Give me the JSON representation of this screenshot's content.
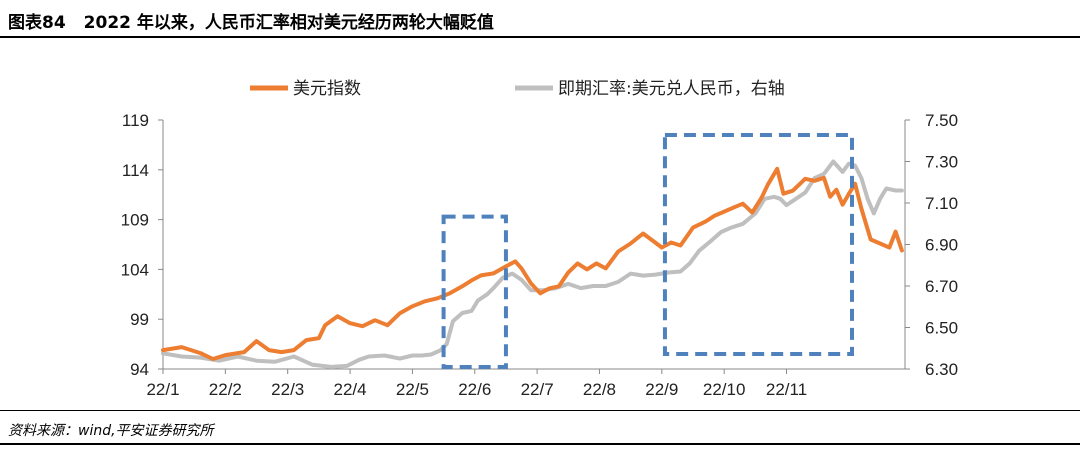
{
  "figure": {
    "label": "图表84",
    "title": "2022 年以来，人民币汇率相对美元经历两轮大幅贬值",
    "source": "资料来源：wind,平安证券研究所"
  },
  "chart_data": {
    "type": "line",
    "x_tick_labels": [
      "22/1",
      "22/2",
      "22/3",
      "22/4",
      "22/5",
      "22/6",
      "22/7",
      "22/8",
      "22/9",
      "22/10",
      "22/11"
    ],
    "y_left": {
      "ticks": [
        "94",
        "99",
        "104",
        "109",
        "114",
        "119"
      ],
      "range": [
        94,
        119
      ]
    },
    "y_right": {
      "ticks": [
        "6.30",
        "6.50",
        "6.70",
        "6.90",
        "7.10",
        "7.30",
        "7.50"
      ],
      "range": [
        6.3,
        7.5
      ]
    },
    "grid": false,
    "legend_position": "top-center",
    "series": [
      {
        "name": "美元指数",
        "axis": "left",
        "color": "#ED7D31",
        "points": [
          [
            0.0,
            95.9
          ],
          [
            0.3,
            96.2
          ],
          [
            0.6,
            95.6
          ],
          [
            0.8,
            95.0
          ],
          [
            1.0,
            95.4
          ],
          [
            1.3,
            95.7
          ],
          [
            1.5,
            96.8
          ],
          [
            1.7,
            95.9
          ],
          [
            1.9,
            95.7
          ],
          [
            2.1,
            95.9
          ],
          [
            2.3,
            96.9
          ],
          [
            2.5,
            97.1
          ],
          [
            2.6,
            98.4
          ],
          [
            2.8,
            99.3
          ],
          [
            3.0,
            98.6
          ],
          [
            3.2,
            98.3
          ],
          [
            3.4,
            98.9
          ],
          [
            3.6,
            98.4
          ],
          [
            3.8,
            99.6
          ],
          [
            4.0,
            100.3
          ],
          [
            4.2,
            100.8
          ],
          [
            4.4,
            101.1
          ],
          [
            4.6,
            101.6
          ],
          [
            4.8,
            102.3
          ],
          [
            4.95,
            102.9
          ],
          [
            5.1,
            103.4
          ],
          [
            5.3,
            103.6
          ],
          [
            5.5,
            104.3
          ],
          [
            5.65,
            104.8
          ],
          [
            5.75,
            104.1
          ],
          [
            5.9,
            102.6
          ],
          [
            6.05,
            101.6
          ],
          [
            6.2,
            102.1
          ],
          [
            6.35,
            102.3
          ],
          [
            6.5,
            103.7
          ],
          [
            6.65,
            104.6
          ],
          [
            6.8,
            104.0
          ],
          [
            6.95,
            104.6
          ],
          [
            7.1,
            104.1
          ],
          [
            7.3,
            105.8
          ],
          [
            7.5,
            106.6
          ],
          [
            7.7,
            107.6
          ],
          [
            7.85,
            106.9
          ],
          [
            8.0,
            106.2
          ],
          [
            8.15,
            106.7
          ],
          [
            8.3,
            106.4
          ],
          [
            8.5,
            108.2
          ],
          [
            8.7,
            108.8
          ],
          [
            8.85,
            109.4
          ],
          [
            9.0,
            109.8
          ],
          [
            9.15,
            110.2
          ],
          [
            9.3,
            110.6
          ],
          [
            9.45,
            109.7
          ],
          [
            9.6,
            111.2
          ],
          [
            9.7,
            112.5
          ],
          [
            9.85,
            114.1
          ],
          [
            9.95,
            111.6
          ],
          [
            10.1,
            111.9
          ],
          [
            10.3,
            113.1
          ],
          [
            10.45,
            112.9
          ],
          [
            10.6,
            113.2
          ],
          [
            10.7,
            111.3
          ],
          [
            10.8,
            112.0
          ],
          [
            10.9,
            110.5
          ],
          [
            11.0,
            111.6
          ],
          [
            11.1,
            112.6
          ],
          [
            11.2,
            110.1
          ],
          [
            11.35,
            107.0
          ],
          [
            11.5,
            106.6
          ],
          [
            11.65,
            106.2
          ],
          [
            11.75,
            107.8
          ],
          [
            11.85,
            105.9
          ]
        ]
      },
      {
        "name": "即期汇率:美元兑人民币，右轴",
        "axis": "right",
        "color": "#BFBFBF",
        "points": [
          [
            0.0,
            6.375
          ],
          [
            0.3,
            6.36
          ],
          [
            0.6,
            6.355
          ],
          [
            0.9,
            6.34
          ],
          [
            1.2,
            6.36
          ],
          [
            1.5,
            6.34
          ],
          [
            1.8,
            6.335
          ],
          [
            2.1,
            6.36
          ],
          [
            2.4,
            6.32
          ],
          [
            2.7,
            6.31
          ],
          [
            2.95,
            6.315
          ],
          [
            3.15,
            6.345
          ],
          [
            3.3,
            6.36
          ],
          [
            3.55,
            6.365
          ],
          [
            3.8,
            6.35
          ],
          [
            4.0,
            6.365
          ],
          [
            4.15,
            6.365
          ],
          [
            4.3,
            6.37
          ],
          [
            4.45,
            6.39
          ],
          [
            4.55,
            6.42
          ],
          [
            4.65,
            6.53
          ],
          [
            4.8,
            6.57
          ],
          [
            4.95,
            6.58
          ],
          [
            5.05,
            6.63
          ],
          [
            5.2,
            6.66
          ],
          [
            5.3,
            6.69
          ],
          [
            5.45,
            6.74
          ],
          [
            5.6,
            6.76
          ],
          [
            5.75,
            6.73
          ],
          [
            5.9,
            6.68
          ],
          [
            6.1,
            6.68
          ],
          [
            6.3,
            6.69
          ],
          [
            6.5,
            6.71
          ],
          [
            6.7,
            6.69
          ],
          [
            6.9,
            6.7
          ],
          [
            7.1,
            6.7
          ],
          [
            7.3,
            6.72
          ],
          [
            7.5,
            6.76
          ],
          [
            7.7,
            6.75
          ],
          [
            7.9,
            6.755
          ],
          [
            8.1,
            6.765
          ],
          [
            8.3,
            6.77
          ],
          [
            8.45,
            6.81
          ],
          [
            8.6,
            6.87
          ],
          [
            8.8,
            6.92
          ],
          [
            8.95,
            6.96
          ],
          [
            9.1,
            6.98
          ],
          [
            9.3,
            7.0
          ],
          [
            9.5,
            7.05
          ],
          [
            9.65,
            7.12
          ],
          [
            9.8,
            7.13
          ],
          [
            9.9,
            7.12
          ],
          [
            10.0,
            7.09
          ],
          [
            10.15,
            7.12
          ],
          [
            10.3,
            7.15
          ],
          [
            10.45,
            7.22
          ],
          [
            10.6,
            7.24
          ],
          [
            10.75,
            7.3
          ],
          [
            10.9,
            7.25
          ],
          [
            11.0,
            7.29
          ],
          [
            11.1,
            7.28
          ],
          [
            11.2,
            7.22
          ],
          [
            11.3,
            7.12
          ],
          [
            11.4,
            7.05
          ],
          [
            11.5,
            7.12
          ],
          [
            11.6,
            7.17
          ],
          [
            11.75,
            7.16
          ],
          [
            11.85,
            7.16
          ]
        ]
      }
    ],
    "annotations": [
      {
        "type": "dashed-box",
        "color": "#4F81BD",
        "x_range": [
          4.5,
          5.5
        ],
        "y_left_range": [
          94.2,
          109.3
        ]
      },
      {
        "type": "dashed-box",
        "color": "#4F81BD",
        "x_range": [
          8.05,
          11.05
        ],
        "y_left_range": [
          95.5,
          117.5
        ]
      }
    ]
  }
}
